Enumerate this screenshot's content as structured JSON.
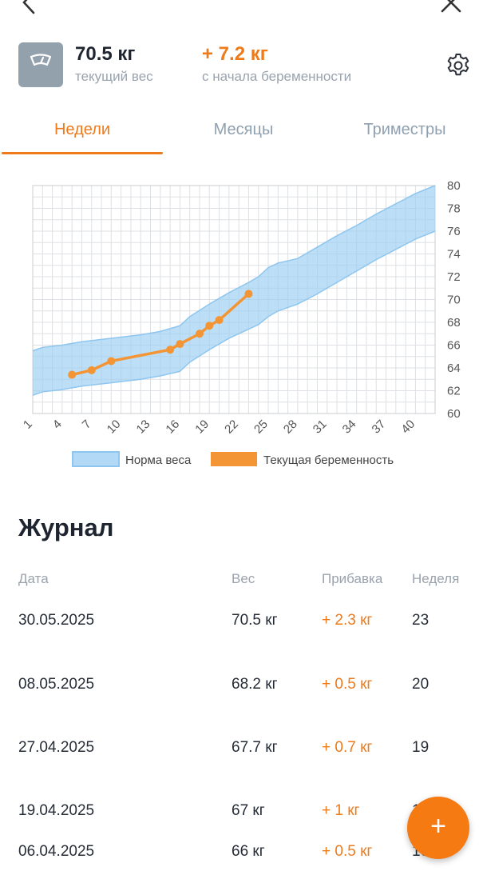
{
  "summary": {
    "current_weight": "70.5 кг",
    "current_label": "текущий вес",
    "gain_value": "+ 7.2 кг",
    "gain_label": "с начала беременности"
  },
  "tabs": [
    {
      "label": "Недели",
      "active": true
    },
    {
      "label": "Месяцы",
      "active": false
    },
    {
      "label": "Триместры",
      "active": false
    }
  ],
  "chart_data": {
    "type": "line",
    "title": "",
    "xlabel": "",
    "ylabel": "",
    "x_ticks": [
      1,
      4,
      7,
      10,
      13,
      16,
      19,
      22,
      25,
      28,
      31,
      34,
      37,
      40
    ],
    "y_ticks": [
      60,
      62,
      64,
      66,
      68,
      70,
      72,
      74,
      76,
      78,
      80
    ],
    "xlim": [
      1,
      42
    ],
    "ylim": [
      60,
      80
    ],
    "grid": true,
    "legend_position": "bottom",
    "series": [
      {
        "name": "Норма веса",
        "kind": "band",
        "color": "#9fd0f2",
        "x": [
          1,
          2,
          4,
          6,
          8,
          10,
          12,
          14,
          16,
          17,
          19,
          21,
          23,
          24,
          25,
          26,
          27,
          28,
          30,
          32,
          34,
          36,
          38,
          40,
          42
        ],
        "lower": [
          61.6,
          61.9,
          62.1,
          62.4,
          62.6,
          62.8,
          63.0,
          63.3,
          63.7,
          64.5,
          65.6,
          66.6,
          67.4,
          67.8,
          68.5,
          69.0,
          69.3,
          69.6,
          70.5,
          71.5,
          72.5,
          73.5,
          74.4,
          75.3,
          76.0
        ],
        "upper": [
          65.5,
          65.8,
          66.0,
          66.3,
          66.5,
          66.7,
          66.9,
          67.2,
          67.7,
          68.5,
          69.6,
          70.6,
          71.5,
          72.0,
          72.8,
          73.2,
          73.4,
          73.6,
          74.6,
          75.6,
          76.5,
          77.5,
          78.4,
          79.3,
          80.0
        ]
      },
      {
        "name": "Текущая беременность",
        "kind": "line",
        "color": "#f39534",
        "x": [
          5,
          7,
          9,
          15,
          16,
          18,
          19,
          20,
          23
        ],
        "y": [
          63.4,
          63.8,
          64.6,
          65.6,
          66.1,
          67.0,
          67.7,
          68.2,
          70.5
        ]
      }
    ]
  },
  "journal": {
    "title": "Журнал",
    "headers": {
      "date": "Дата",
      "weight": "Вес",
      "gain": "Прибавка",
      "week": "Неделя"
    },
    "rows": [
      {
        "date": "30.05.2025",
        "weight": "70.5 кг",
        "gain": "+ 2.3 кг",
        "week": "23"
      },
      {
        "date": "08.05.2025",
        "weight": "68.2 кг",
        "gain": "+ 0.5 кг",
        "week": "20"
      },
      {
        "date": "27.04.2025",
        "weight": "67.7 кг",
        "gain": "+ 0.7 кг",
        "week": "19"
      },
      {
        "date": "19.04.2025",
        "weight": "67 кг",
        "gain": "+ 1 кг",
        "week": "18"
      },
      {
        "date": "06.04.2025",
        "weight": "66 кг",
        "gain": "+ 0.5 кг",
        "week": "16"
      }
    ]
  },
  "fab": {
    "symbol": "+"
  },
  "icons": {
    "back": "chevron-left-icon",
    "close": "close-icon",
    "scale": "scale-icon",
    "settings": "gear-icon"
  },
  "colors": {
    "accent": "#ee7a1a",
    "band": "#9fd0f2",
    "muted": "#9aa3ad"
  }
}
